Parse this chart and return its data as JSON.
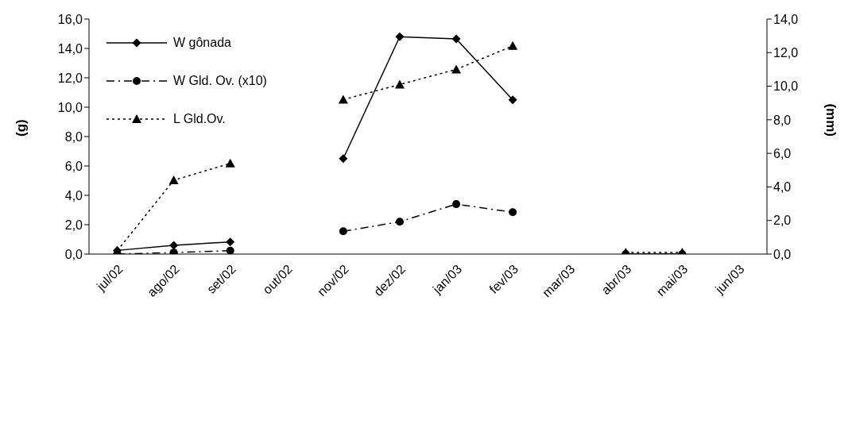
{
  "chart_data": {
    "type": "line",
    "categories": [
      "jul/02",
      "ago/02",
      "set/02",
      "out/02",
      "nov/02",
      "dez/02",
      "jan/03",
      "fev/03",
      "mar/03",
      "abr/03",
      "mai/03",
      "jun/03"
    ],
    "series": [
      {
        "name": "W gônada",
        "color": "#000000",
        "marker": "diamond",
        "line_style": "solid",
        "values": [
          0.25,
          0.6,
          0.83,
          null,
          6.5,
          14.8,
          14.65,
          10.5,
          null,
          0.0,
          0.0,
          null
        ]
      },
      {
        "name": "W Gld. Ov. (x10)",
        "color": "#000000",
        "marker": "circle",
        "line_style": "dashed",
        "values": [
          0.0,
          0.1,
          0.23,
          null,
          1.55,
          2.2,
          3.4,
          2.85,
          null,
          0.0,
          0.0,
          null
        ]
      },
      {
        "name": "L Gld.Ov.",
        "color": "#000000",
        "marker": "triangle",
        "line_style": "dotted",
        "axis": "y2",
        "values": [
          0.2,
          4.4,
          5.4,
          null,
          9.2,
          10.1,
          11.0,
          12.4,
          null,
          0.1,
          0.1,
          null
        ]
      }
    ],
    "ylabel": "(g)",
    "y2label": "(mm)",
    "ylim": [
      0,
      16
    ],
    "yticks": [
      {
        "value": 0,
        "label": "0,0"
      },
      {
        "value": 2,
        "label": "2,0"
      },
      {
        "value": 4,
        "label": "4,0"
      },
      {
        "value": 6,
        "label": "6,0"
      },
      {
        "value": 8,
        "label": "8,0"
      },
      {
        "value": 10,
        "label": "10,0"
      },
      {
        "value": 12,
        "label": "12,0"
      },
      {
        "value": 14,
        "label": "14,0"
      },
      {
        "value": 16,
        "label": "16,0"
      }
    ],
    "y2lim": [
      0,
      14
    ],
    "y2ticks": [
      {
        "value": 0,
        "label": "0,0"
      },
      {
        "value": 2,
        "label": "2,0"
      },
      {
        "value": 4,
        "label": "4,0"
      },
      {
        "value": 6,
        "label": "6,0"
      },
      {
        "value": 8,
        "label": "8,0"
      },
      {
        "value": 10,
        "label": "10,0"
      },
      {
        "value": 12,
        "label": "12,0"
      },
      {
        "value": 14,
        "label": "14,0"
      }
    ],
    "legend": "top left",
    "grid": false
  }
}
